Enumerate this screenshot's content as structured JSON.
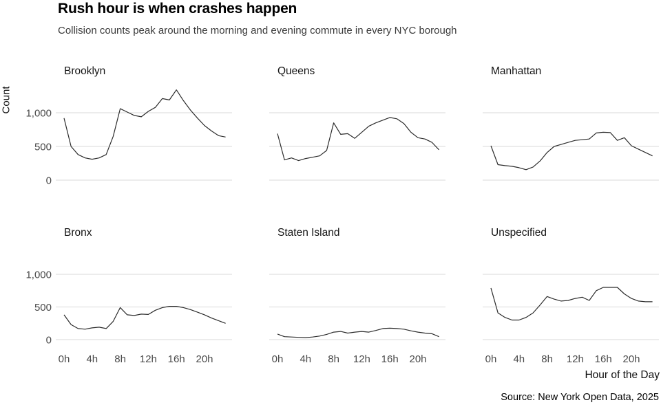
{
  "page": {
    "title": "Rush hour is when crashes happen",
    "subtitle": "Collision counts peak around the morning and evening commute in every NYC borough",
    "source": "Source: New York Open Data, 2025"
  },
  "chart_data": {
    "type": "line",
    "layout": "small-multiples, 2 rows x 3 cols, shared axes",
    "title": "Rush hour is when crashes happen",
    "subtitle": "Collision counts peak around the morning and evening commute in every NYC borough",
    "xlabel": "Hour of the Day",
    "ylabel": "Count",
    "x": [
      0,
      1,
      2,
      3,
      4,
      5,
      6,
      7,
      8,
      9,
      10,
      11,
      12,
      13,
      14,
      15,
      16,
      17,
      18,
      19,
      20,
      21,
      22,
      23
    ],
    "x_tick_hours": [
      0,
      4,
      8,
      12,
      16,
      20
    ],
    "x_tick_labels": [
      "0h",
      "4h",
      "8h",
      "12h",
      "16h",
      "20h"
    ],
    "y_ticks": [
      {
        "value": 0,
        "label": "0"
      },
      {
        "value": 500,
        "label": "500"
      },
      {
        "value": 1000,
        "label": "1,000"
      }
    ],
    "ylim": [
      0,
      1400
    ],
    "grid": "horizontal gridlines at 0, 500, 1000",
    "legend": "none",
    "line_color": "#2b2b2b",
    "gridline_color": "#d9d9d9",
    "tick_color": "#4a4a4a",
    "panels": [
      {
        "title": "Brooklyn",
        "values": [
          920,
          500,
          380,
          330,
          310,
          330,
          380,
          650,
          1060,
          1010,
          960,
          940,
          1020,
          1080,
          1210,
          1190,
          1340,
          1180,
          1040,
          920,
          810,
          730,
          660,
          640
        ]
      },
      {
        "title": "Queens",
        "values": [
          690,
          300,
          330,
          290,
          320,
          340,
          360,
          440,
          850,
          680,
          690,
          620,
          710,
          800,
          850,
          890,
          930,
          910,
          840,
          710,
          630,
          610,
          560,
          450
        ]
      },
      {
        "title": "Manhattan",
        "values": [
          510,
          230,
          215,
          205,
          185,
          155,
          195,
          285,
          410,
          500,
          530,
          560,
          590,
          600,
          610,
          700,
          710,
          705,
          590,
          630,
          510,
          460,
          410,
          360
        ]
      },
      {
        "title": "Bronx",
        "values": [
          380,
          230,
          170,
          160,
          180,
          190,
          170,
          280,
          490,
          380,
          370,
          390,
          385,
          450,
          490,
          510,
          510,
          490,
          460,
          420,
          380,
          330,
          290,
          250
        ]
      },
      {
        "title": "Staten Island",
        "values": [
          85,
          45,
          40,
          35,
          30,
          40,
          55,
          80,
          115,
          125,
          100,
          115,
          125,
          115,
          140,
          170,
          175,
          170,
          160,
          135,
          115,
          100,
          90,
          45
        ]
      },
      {
        "title": "Unspecified",
        "values": [
          790,
          410,
          340,
          300,
          300,
          340,
          410,
          530,
          660,
          620,
          590,
          600,
          630,
          650,
          600,
          750,
          800,
          800,
          800,
          700,
          630,
          590,
          580,
          580
        ]
      }
    ]
  }
}
